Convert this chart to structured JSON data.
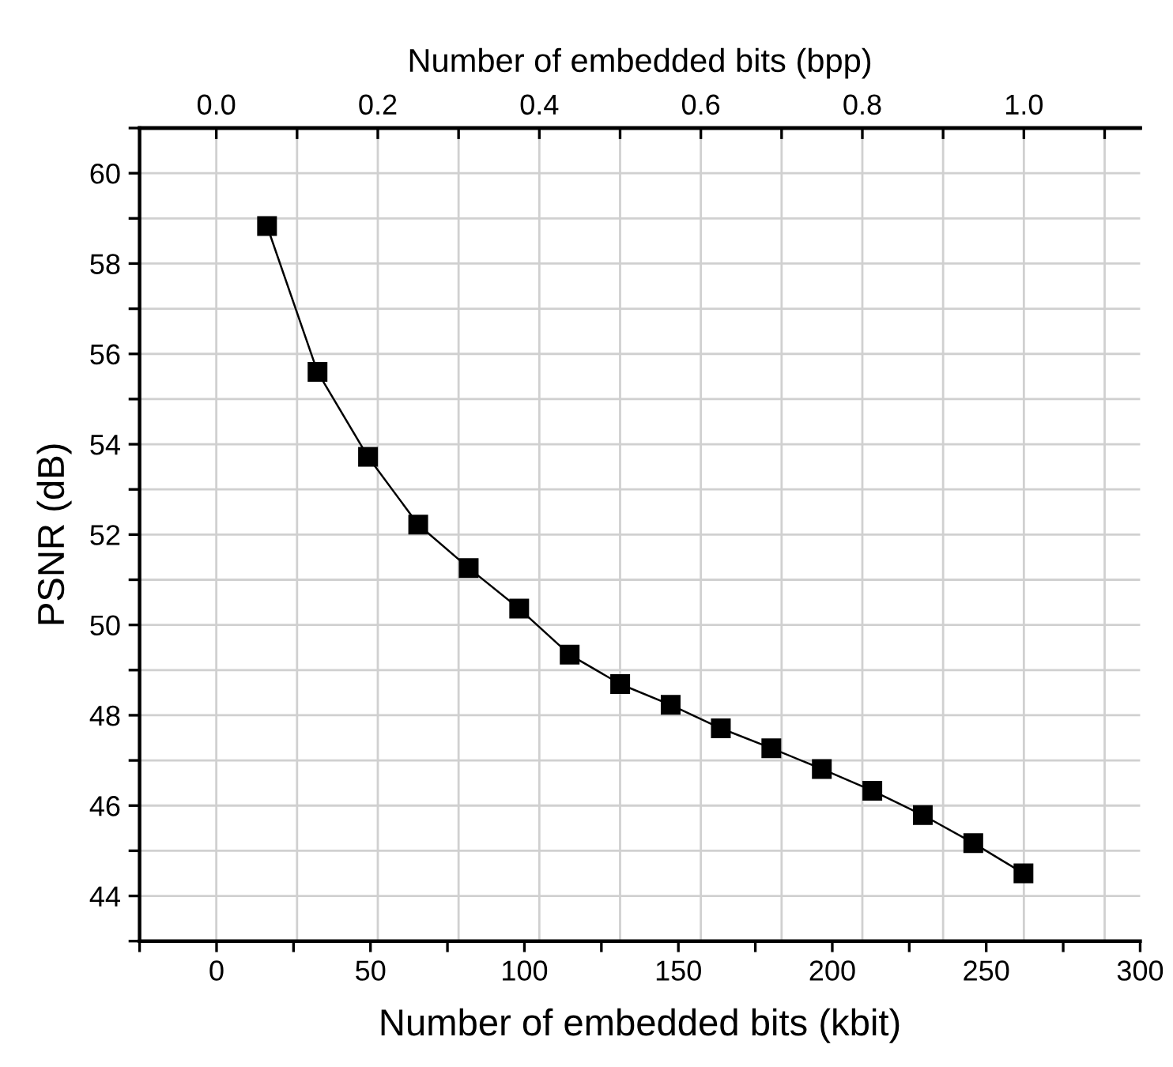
{
  "chart_data": {
    "type": "line",
    "xlabel": "Number of embedded bits (kbit)",
    "ylabel": "PSNR (dB)",
    "x2label": "Number of embedded bits (bpp)",
    "x": [
      16.4,
      32.8,
      49.2,
      65.5,
      81.9,
      98.3,
      114.7,
      131.1,
      147.5,
      163.8,
      180.2,
      196.6,
      213.0,
      229.4,
      245.8,
      262.1
    ],
    "series": [
      {
        "color": "#000000",
        "values": [
          58.83,
          55.6,
          53.72,
          52.22,
          51.26,
          50.36,
          49.34,
          48.69,
          48.23,
          47.71,
          47.27,
          46.81,
          46.33,
          45.79,
          45.17,
          44.5
        ]
      }
    ],
    "marker": "square",
    "line_style": "solid",
    "grid": true,
    "xlim": [
      -25,
      300
    ],
    "xticks": [
      {
        "value": -25,
        "label": null
      },
      0,
      {
        "value": 25,
        "label": null
      },
      50,
      {
        "value": 75,
        "label": null
      },
      100,
      {
        "value": 125,
        "label": null
      },
      150,
      {
        "value": 175,
        "label": null
      },
      200,
      {
        "value": 225,
        "label": null
      },
      250,
      {
        "value": 275,
        "label": null
      },
      300
    ],
    "x2lim": [
      -0.095,
      1.144
    ],
    "x2ticks": [
      {
        "value": 0,
        "label": "0.0"
      },
      {
        "value": 0.1,
        "label": null
      },
      {
        "value": 0.2,
        "label": "0.2"
      },
      {
        "value": 0.3,
        "label": null
      },
      {
        "value": 0.4,
        "label": "0.4"
      },
      {
        "value": 0.5,
        "label": null
      },
      {
        "value": 0.6,
        "label": "0.6"
      },
      {
        "value": 0.7,
        "label": null
      },
      {
        "value": 0.8,
        "label": "0.8"
      },
      {
        "value": 0.9,
        "label": null
      },
      {
        "value": 1.0,
        "label": "1.0"
      },
      {
        "value": 1.1,
        "label": null
      }
    ],
    "ylim": [
      43,
      61
    ],
    "yticks": [
      {
        "value": 43,
        "label": null
      },
      44,
      {
        "value": 45,
        "label": null
      },
      46,
      {
        "value": 47,
        "label": null
      },
      48,
      {
        "value": 49,
        "label": null
      },
      50,
      {
        "value": 51,
        "label": null
      },
      52,
      {
        "value": 53,
        "label": null
      },
      54,
      {
        "value": 55,
        "label": null
      },
      56,
      {
        "value": 57,
        "label": null
      },
      58,
      {
        "value": 59,
        "label": null
      },
      60,
      {
        "value": 61,
        "label": null
      }
    ]
  }
}
